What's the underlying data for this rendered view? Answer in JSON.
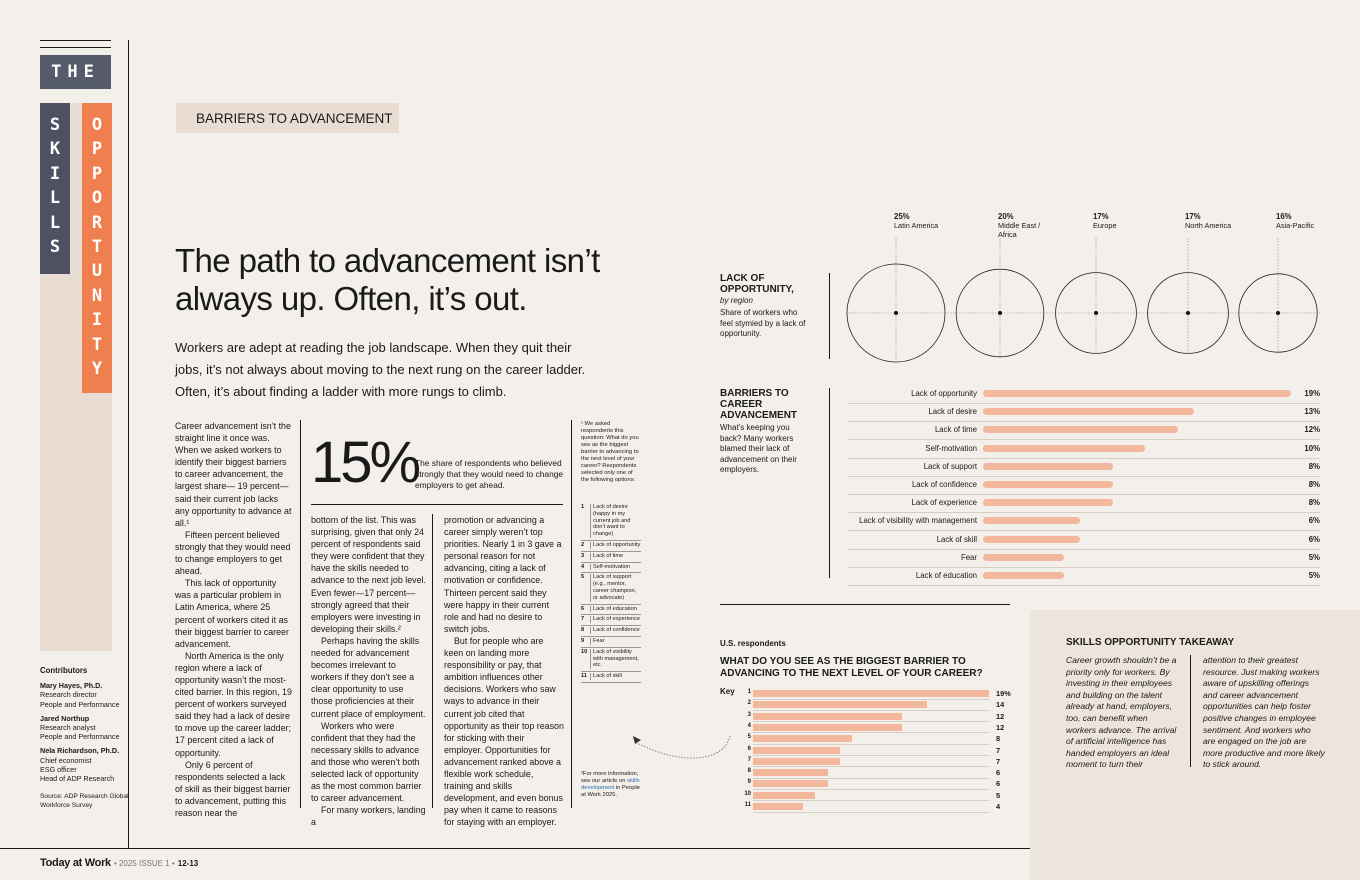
{
  "rail": {
    "the": "THE",
    "skills_letters": [
      "S",
      "K",
      "I",
      "L",
      "L",
      "S"
    ],
    "opportunity_letters": [
      "O",
      "P",
      "P",
      "O",
      "R",
      "T",
      "U",
      "N",
      "I",
      "T",
      "Y"
    ]
  },
  "contributors": {
    "heading": "Contributors",
    "people": [
      {
        "name": "Mary Hayes, Ph.D.",
        "lines": [
          "Research director",
          "People and Performance"
        ]
      },
      {
        "name": "Jared Northup",
        "lines": [
          "Research analyst",
          "People and Performance"
        ]
      },
      {
        "name": "Nela Richardson, Ph.D.",
        "lines": [
          "Chief economist",
          "ESG officer",
          "Head of ADP Research"
        ]
      }
    ],
    "source": "Source: ADP Research Global Workforce Survey"
  },
  "section_tag": "BARRIERS TO ADVANCEMENT",
  "headline": "The path to advancement isn’t always up. Often, it’s out.",
  "lede": "Workers are adept at reading the job landscape. When they quit their jobs, it’s not always about moving to the next rung on the career ladder. Often, it’s about finding a ladder with more rungs to climb.",
  "col1": [
    "Career advancement isn’t the straight line it once was. When we asked workers to identify their biggest barriers to career advancement, the largest share— 19 percent—said their current job lacks any opportunity to advance at all.¹",
    "Fifteen percent believed strongly that they would need to change employers to get ahead.",
    "This lack of opportunity was a particular problem in Latin America, where 25 percent of workers cited it as their biggest barrier to career advancement.",
    "North America is the only region where a lack of opportunity wasn’t the most-cited barrier. In this region, 19 percent of workers surveyed said they had a lack of desire to move up the career ladder; 17 percent cited a lack of opportunity.",
    "Only 6 percent of respondents selected a lack of skill as their biggest barrier to advancement, putting this reason near the"
  ],
  "stat": {
    "value": "15%",
    "caption": "The share of respondents who believed strongly that they would need to change employers to get ahead."
  },
  "col2": [
    "bottom of the list. This was surprising, given that only 24 percent of respondents said they were confident that they have the skills needed to advance to the next job level. Even fewer—17 percent—strongly agreed that their employers were investing in developing their skills.²",
    "Perhaps having the skills needed for advancement becomes irrelevant to workers if they don’t see a clear opportunity to use those proficiencies at their current place of employment.",
    "Workers who were confident that they had the necessary skills to advance and those who weren’t both selected lack of opportunity as the most common barrier to career advancement.",
    "For many workers, landing a"
  ],
  "col3": [
    "promotion or advancing a career simply weren’t top priorities. Nearly 1 in 3 gave a personal reason for not advancing, citing a lack of motivation or confidence. Thirteen percent said they were happy in their current role and had no desire to switch jobs.",
    "But for people who are keen on landing more responsibility or pay, that ambition influences other decisions. Workers who saw ways to advance in their current job cited that opportunity as their top reason for sticking with their employer. Opportunities for advancement ranked above a flexible work schedule, training and skills development, and even bonus pay when it came to reasons for staying with an employer."
  ],
  "footnote1": "¹ We asked respondents this question: What do you see as the biggest barrier to advancing to the next level of your career? Respondents selected only one of the following options:",
  "options": [
    {
      "n": "1",
      "t": "Lack of desire (happy in my current job and don’t want to change)"
    },
    {
      "n": "2",
      "t": "Lack of opportunity"
    },
    {
      "n": "3",
      "t": "Lack of time"
    },
    {
      "n": "4",
      "t": "Self-motivation"
    },
    {
      "n": "5",
      "t": "Lack of support (e.g., mentor, career champion, or advocate)"
    },
    {
      "n": "6",
      "t": "Lack of education"
    },
    {
      "n": "7",
      "t": "Lack of experience"
    },
    {
      "n": "8",
      "t": "Lack of confidence"
    },
    {
      "n": "9",
      "t": "Fear"
    },
    {
      "n": "10",
      "t": "Lack of visibility with management, etc."
    },
    {
      "n": "11",
      "t": "Lack of skill"
    }
  ],
  "footnote2_a": "²For more information, see our article on ",
  "footnote2_link": "skills development",
  "footnote2_b": " in People at Work 2025.",
  "lack_opp": {
    "title": "LACK OF OPPORTUNITY,",
    "by": "by region",
    "desc": "Share of workers who feel stymied by a lack of opportunity.",
    "regions": [
      {
        "pct": "25%",
        "name": "Latin America",
        "value": 25
      },
      {
        "pct": "20%",
        "name": "Middle East / Africa",
        "value": 20
      },
      {
        "pct": "17%",
        "name": "Europe",
        "value": 17
      },
      {
        "pct": "17%",
        "name": "North America",
        "value": 17
      },
      {
        "pct": "16%",
        "name": "Asia-Pacific",
        "value": 16
      }
    ]
  },
  "barriers": {
    "title": "BARRIERS TO CAREER ADVANCEMENT",
    "desc": "What’s keeping you back? Many workers blamed their lack of advancement on their employers."
  },
  "chart_data": [
    {
      "type": "bar",
      "title": "BARRIERS TO CAREER ADVANCEMENT",
      "categories": [
        "Lack of opportunity",
        "Lack of desire",
        "Lack of time",
        "Self-motivation",
        "Lack of support",
        "Lack of confidence",
        "Lack of experience",
        "Lack of visibility with management",
        "Lack of skill",
        "Fear",
        "Lack of education"
      ],
      "values": [
        19,
        13,
        12,
        10,
        8,
        8,
        8,
        6,
        6,
        5,
        5
      ],
      "labels": [
        "19%",
        "13%",
        "12%",
        "10%",
        "8%",
        "8%",
        "8%",
        "6%",
        "6%",
        "5%",
        "5%"
      ]
    },
    {
      "type": "bar",
      "title": "WHAT DO YOU SEE AS THE BIGGEST BARRIER TO ADVANCING TO THE NEXT LEVEL OF YOUR CAREER?",
      "categories": [
        "1",
        "2",
        "3",
        "4",
        "5",
        "6",
        "7",
        "8",
        "9",
        "10",
        "11"
      ],
      "values": [
        19,
        14,
        12,
        12,
        8,
        7,
        7,
        6,
        6,
        5,
        4
      ],
      "labels": [
        "19%",
        "14",
        "12",
        "12",
        "8",
        "7",
        "7",
        "6",
        "6",
        "5",
        "4"
      ]
    }
  ],
  "us": {
    "tag": "U.S. respondents",
    "title": "WHAT DO YOU SEE AS THE BIGGEST BARRIER TO ADVANCING TO THE NEXT LEVEL OF YOUR CAREER?",
    "key": "Key"
  },
  "takeaway": {
    "title": "SKILLS OPPORTUNITY TAKEAWAY",
    "col1": "Career growth shouldn’t be a priority only for workers. By investing in their employees and building on the talent already at hand, employers, too, can benefit when workers advance. The arrival of artificial intelligence has handed employers an ideal moment to turn their",
    "col2": "attention to their greatest resource. Just making workers aware of upskilling offerings and career advancement opportunities can help foster positive changes in employee sentiment. And workers who are engaged on the job are more productive and more likely to stick around."
  },
  "footer": {
    "brand": "Today at Work",
    "issue": "• 2025 ISSUE 1 •",
    "pages": "12-13"
  },
  "colors": {
    "accent_orange": "#ef7f4f",
    "slate": "#4d5161",
    "bar": "#f3b79c",
    "tag_bg": "#e9dcd2"
  }
}
